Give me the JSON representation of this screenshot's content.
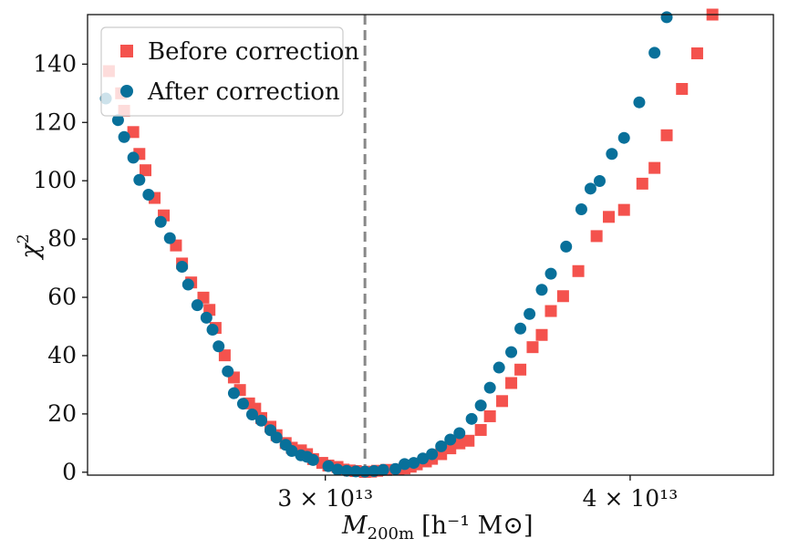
{
  "chart_data": {
    "type": "scatter",
    "title": "",
    "xlabel": "M200m [h^-1 M⊙]",
    "xlabel_main": "M",
    "xlabel_sub": "200m",
    "xlabel_units": "[h⁻¹ M⊙]",
    "ylabel": "χ²",
    "ylabel_main": "χ",
    "ylabel_sup": "2",
    "xlim": [
      22200000000000.0,
      44700000000000.0
    ],
    "ylim": [
      -1,
      157
    ],
    "x_ticks": [
      {
        "value": 30000000000000.0,
        "label": "3 × 10¹³"
      },
      {
        "value": 40000000000000.0,
        "label": "4 × 10¹³"
      }
    ],
    "y_ticks": [
      0,
      20,
      40,
      60,
      80,
      100,
      120,
      140
    ],
    "vline": {
      "x": 31300000000000.0,
      "style": "dashed",
      "color": "#888888"
    },
    "legend": {
      "position": "upper-left"
    },
    "series": [
      {
        "name": "Before correction",
        "marker": "square",
        "color": "#f4524d",
        "points": [
          [
            22900000000000.0,
            137.6
          ],
          [
            23300000000000.0,
            130.0
          ],
          [
            23400000000000.0,
            124.0
          ],
          [
            23700000000000.0,
            116.7
          ],
          [
            23900000000000.0,
            109.2
          ],
          [
            24100000000000.0,
            103.6
          ],
          [
            24400000000000.0,
            94.1
          ],
          [
            24700000000000.0,
            88.1
          ],
          [
            25100000000000.0,
            77.8
          ],
          [
            25300000000000.0,
            71.6
          ],
          [
            25600000000000.0,
            65.1
          ],
          [
            26000000000000.0,
            59.9
          ],
          [
            26200000000000.0,
            55.7
          ],
          [
            26400000000000.0,
            49.5
          ],
          [
            26700000000000.0,
            40.1
          ],
          [
            27000000000000.0,
            32.5
          ],
          [
            27200000000000.0,
            28.2
          ],
          [
            27500000000000.0,
            23.6
          ],
          [
            27700000000000.0,
            21.8
          ],
          [
            27900000000000.0,
            18.6
          ],
          [
            28200000000000.0,
            15.6
          ],
          [
            28400000000000.0,
            12.7
          ],
          [
            28700000000000.0,
            10.0
          ],
          [
            28900000000000.0,
            8.4
          ],
          [
            29200000000000.0,
            7.5
          ],
          [
            29400000000000.0,
            6.2
          ],
          [
            29600000000000.0,
            4.5
          ],
          [
            29900000000000.0,
            3.2
          ],
          [
            30100000000000.0,
            2.3
          ],
          [
            30400000000000.0,
            1.8
          ],
          [
            30600000000000.0,
            0.9
          ],
          [
            30800000000000.0,
            0.6
          ],
          [
            31000000000000.0,
            0.4
          ],
          [
            31300000000000.0,
            0.1
          ],
          [
            31500000000000.0,
            0.2
          ],
          [
            31700000000000.0,
            0.5
          ],
          [
            32000000000000.0,
            0.8
          ],
          [
            32400000000000.0,
            0.9
          ],
          [
            32600000000000.0,
            1.3
          ],
          [
            32800000000000.0,
            1.9
          ],
          [
            33000000000000.0,
            2.7
          ],
          [
            33300000000000.0,
            3.7
          ],
          [
            33500000000000.0,
            4.6
          ],
          [
            33800000000000.0,
            6.2
          ],
          [
            34100000000000.0,
            8.2
          ],
          [
            34400000000000.0,
            9.9
          ],
          [
            34700000000000.0,
            10.8
          ],
          [
            35100000000000.0,
            14.5
          ],
          [
            35400000000000.0,
            19.2
          ],
          [
            35800000000000.0,
            24.4
          ],
          [
            36100000000000.0,
            30.6
          ],
          [
            36400000000000.0,
            35.2
          ],
          [
            36800000000000.0,
            42.9
          ],
          [
            37100000000000.0,
            47.1
          ],
          [
            37400000000000.0,
            55.3
          ],
          [
            37800000000000.0,
            60.4
          ],
          [
            38300000000000.0,
            69.0
          ],
          [
            38900000000000.0,
            81.0
          ],
          [
            39300000000000.0,
            87.6
          ],
          [
            39800000000000.0,
            90.0
          ],
          [
            40400000000000.0,
            99.0
          ],
          [
            40800000000000.0,
            104.4
          ],
          [
            41200000000000.0,
            115.6
          ],
          [
            41700000000000.0,
            131.5
          ],
          [
            42200000000000.0,
            143.7
          ],
          [
            42700000000000.0,
            157.0
          ]
        ]
      },
      {
        "name": "After correction",
        "marker": "circle",
        "color": "#08709a",
        "points": [
          [
            22800000000000.0,
            128.2
          ],
          [
            23200000000000.0,
            120.8
          ],
          [
            23400000000000.0,
            115.0
          ],
          [
            23700000000000.0,
            107.9
          ],
          [
            23900000000000.0,
            100.3
          ],
          [
            24200000000000.0,
            95.2
          ],
          [
            24600000000000.0,
            85.9
          ],
          [
            24900000000000.0,
            80.3
          ],
          [
            25300000000000.0,
            70.5
          ],
          [
            25500000000000.0,
            64.4
          ],
          [
            25800000000000.0,
            57.3
          ],
          [
            26100000000000.0,
            53.0
          ],
          [
            26300000000000.0,
            48.9
          ],
          [
            26500000000000.0,
            43.2
          ],
          [
            26800000000000.0,
            34.6
          ],
          [
            27000000000000.0,
            27.1
          ],
          [
            27300000000000.0,
            23.5
          ],
          [
            27600000000000.0,
            19.8
          ],
          [
            27900000000000.0,
            17.7
          ],
          [
            28200000000000.0,
            14.4
          ],
          [
            28400000000000.0,
            11.9
          ],
          [
            28700000000000.0,
            9.4
          ],
          [
            28900000000000.0,
            7.3
          ],
          [
            29200000000000.0,
            5.8
          ],
          [
            29400000000000.0,
            5.3
          ],
          [
            29600000000000.0,
            4.2
          ],
          [
            30100000000000.0,
            2.1
          ],
          [
            30400000000000.0,
            0.9
          ],
          [
            30700000000000.0,
            0.5
          ],
          [
            31000000000000.0,
            0.3
          ],
          [
            31300000000000.0,
            0.2
          ],
          [
            31600000000000.0,
            0.4
          ],
          [
            31900000000000.0,
            0.8
          ],
          [
            32300000000000.0,
            1.1
          ],
          [
            32600000000000.0,
            2.8
          ],
          [
            32900000000000.0,
            3.2
          ],
          [
            33200000000000.0,
            4.7
          ],
          [
            33500000000000.0,
            6.2
          ],
          [
            33800000000000.0,
            8.9
          ],
          [
            34100000000000.0,
            11.2
          ],
          [
            34400000000000.0,
            13.4
          ],
          [
            34800000000000.0,
            18.3
          ],
          [
            35100000000000.0,
            22.9
          ],
          [
            35400000000000.0,
            29.0
          ],
          [
            35700000000000.0,
            35.9
          ],
          [
            36100000000000.0,
            41.2
          ],
          [
            36400000000000.0,
            49.3
          ],
          [
            36700000000000.0,
            54.3
          ],
          [
            37100000000000.0,
            62.6
          ],
          [
            37400000000000.0,
            68.1
          ],
          [
            37900000000000.0,
            77.4
          ],
          [
            38400000000000.0,
            90.2
          ],
          [
            38700000000000.0,
            97.3
          ],
          [
            39000000000000.0,
            99.9
          ],
          [
            39400000000000.0,
            109.2
          ],
          [
            39800000000000.0,
            114.7
          ],
          [
            40300000000000.0,
            126.9
          ],
          [
            40800000000000.0,
            143.9
          ],
          [
            41200000000000.0,
            156.1
          ]
        ]
      }
    ]
  }
}
